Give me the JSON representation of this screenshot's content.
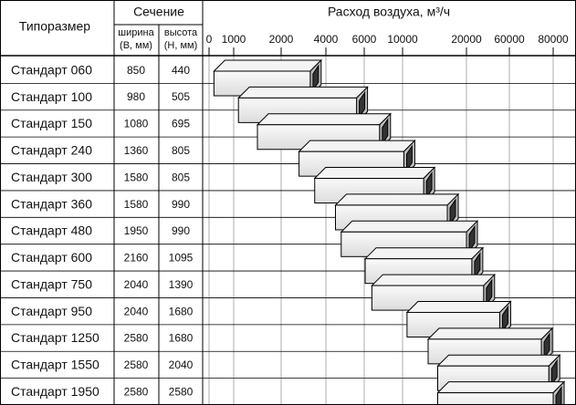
{
  "table": {
    "header": {
      "model": "Типоразмер",
      "section": "Сечение",
      "width": [
        "ширина",
        "(B, мм)"
      ],
      "height": [
        "высота",
        "(H, мм)"
      ],
      "flow": "Расход воздуха, м³/ч"
    },
    "flow_ticks": [
      0,
      1000,
      2000,
      4000,
      6000,
      10000,
      20000,
      60000,
      80000
    ],
    "rows": [
      {
        "model": "Стандарт 060",
        "width": "850",
        "height": "440",
        "flow": [
          200,
          3300
        ]
      },
      {
        "model": "Стандарт 100",
        "width": "980",
        "height": "505",
        "flow": [
          1100,
          5600
        ]
      },
      {
        "model": "Стандарт 150",
        "width": "1080",
        "height": "695",
        "flow": [
          1500,
          7600
        ]
      },
      {
        "model": "Стандарт 240",
        "width": "1360",
        "height": "805",
        "flow": [
          2800,
          10200
        ]
      },
      {
        "model": "Стандарт 300",
        "width": "1580",
        "height": "805",
        "flow": [
          3500,
          13300
        ]
      },
      {
        "model": "Стандарт 360",
        "width": "1580",
        "height": "990",
        "flow": [
          4500,
          17000
        ]
      },
      {
        "model": "Стандарт 480",
        "width": "1950",
        "height": "990",
        "flow": [
          4800,
          20000
        ]
      },
      {
        "model": "Стандарт 600",
        "width": "2160",
        "height": "1095",
        "flow": [
          6100,
          25000
        ]
      },
      {
        "model": "Стандарт 750",
        "width": "2040",
        "height": "1390",
        "flow": [
          6800,
          36000
        ]
      },
      {
        "model": "Стандарт 950",
        "width": "2040",
        "height": "1680",
        "flow": [
          10700,
          51000
        ]
      },
      {
        "model": "Стандарт 1250",
        "width": "2580",
        "height": "1680",
        "flow": [
          14000,
          74600
        ]
      },
      {
        "model": "Стандарт 1550",
        "width": "2580",
        "height": "2040",
        "flow": [
          15500,
          78000
        ]
      },
      {
        "model": "Стандарт 1950",
        "width": "2580",
        "height": "2580",
        "flow": [
          15500,
          80000
        ]
      }
    ]
  }
}
